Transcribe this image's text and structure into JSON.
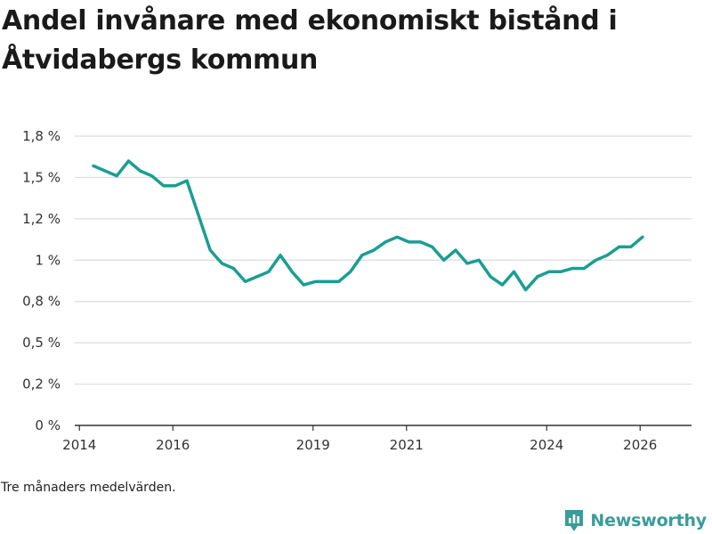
{
  "chart_data": {
    "type": "line",
    "title": "Andel invånare med ekonomiskt bistånd i Åtvidabergs kommun",
    "xlabel": "",
    "ylabel": "",
    "ylim": [
      0,
      1.75
    ],
    "y_ticks": [
      0,
      0.25,
      0.5,
      0.75,
      1.0,
      1.25,
      1.5,
      1.75
    ],
    "y_tick_labels": [
      "0 %",
      "0,2 %",
      "0,5 %",
      "0,8 %",
      "1 %",
      "1,2 %",
      "1,5 %",
      "1,8 %"
    ],
    "xlim": [
      2013.9,
      2027.1
    ],
    "x_ticks": [
      2014,
      2016,
      2019,
      2021,
      2024,
      2026
    ],
    "x_tick_labels": [
      "2014",
      "2016",
      "2019",
      "2021",
      "2024",
      "2026"
    ],
    "grid": true,
    "line_color": "#1a9e92",
    "series": [
      {
        "name": "Andel invånare med ekonomiskt bistånd",
        "x": [
          2014.3,
          2014.55,
          2014.8,
          2015.05,
          2015.3,
          2015.55,
          2015.8,
          2016.05,
          2016.3,
          2016.55,
          2016.8,
          2017.05,
          2017.3,
          2017.55,
          2017.8,
          2018.05,
          2018.3,
          2018.55,
          2018.8,
          2019.05,
          2019.3,
          2019.55,
          2019.8,
          2020.05,
          2020.3,
          2020.55,
          2020.8,
          2021.05,
          2021.3,
          2021.55,
          2021.8,
          2022.05,
          2022.3,
          2022.55,
          2022.8,
          2023.05,
          2023.3,
          2023.55,
          2023.8,
          2024.05,
          2024.3,
          2024.55,
          2024.8,
          2025.05,
          2025.3,
          2025.55,
          2025.8,
          2026.05
        ],
        "y": [
          1.57,
          1.54,
          1.51,
          1.6,
          1.54,
          1.51,
          1.45,
          1.45,
          1.48,
          1.27,
          1.06,
          0.98,
          0.95,
          0.87,
          0.9,
          0.93,
          1.03,
          0.93,
          0.85,
          0.87,
          0.87,
          0.87,
          0.93,
          1.03,
          1.06,
          1.11,
          1.14,
          1.11,
          1.11,
          1.08,
          1.0,
          1.06,
          0.98,
          1.0,
          0.9,
          0.85,
          0.93,
          0.82,
          0.9,
          0.93,
          0.93,
          0.95,
          0.95,
          1.0,
          1.03,
          1.08,
          1.08,
          1.14
        ]
      }
    ]
  },
  "footnote": "Tre månaders medelvärden.",
  "brand": {
    "name": "Newsworthy",
    "icon": "newsworthy-logo-icon",
    "color": "#3a9c9a"
  }
}
